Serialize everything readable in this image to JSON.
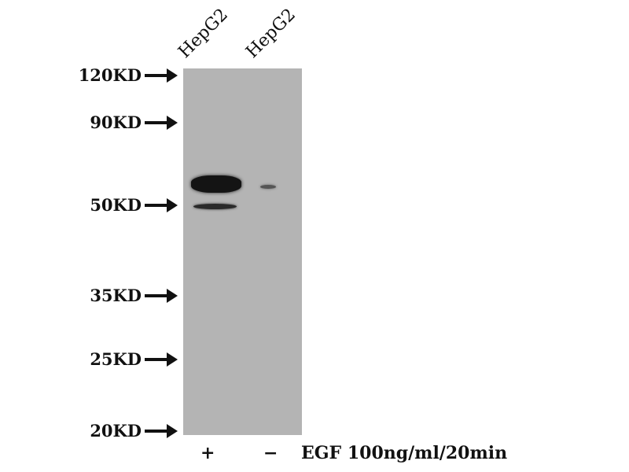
{
  "lanes": [
    {
      "label": "HepG2",
      "treatment": "+"
    },
    {
      "label": "HepG2",
      "treatment": "−"
    }
  ],
  "markers": [
    "120KD",
    "90KD",
    "50KD",
    "35KD",
    "25KD",
    "20KD"
  ],
  "treatment_label": "EGF 100ng/ml/20min",
  "colors": {
    "membrane": "#b4b4b4",
    "band": "#141414"
  }
}
